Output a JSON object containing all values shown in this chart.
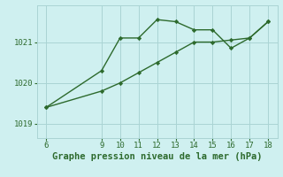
{
  "line1_x": [
    6,
    9,
    10,
    11,
    12,
    13,
    14,
    15,
    16,
    17,
    18
  ],
  "line1_y": [
    1019.4,
    1020.3,
    1021.1,
    1021.1,
    1021.55,
    1021.5,
    1021.3,
    1021.3,
    1020.85,
    1021.1,
    1021.5
  ],
  "line2_x": [
    6,
    9,
    10,
    11,
    12,
    13,
    14,
    15,
    16,
    17,
    18
  ],
  "line2_y": [
    1019.4,
    1019.8,
    1020.0,
    1020.25,
    1020.5,
    1020.75,
    1021.0,
    1021.0,
    1021.05,
    1021.1,
    1021.5
  ],
  "line_color": "#2d6a2d",
  "marker": "D",
  "markersize": 2.2,
  "linewidth": 1.0,
  "xlabel": "Graphe pression niveau de la mer (hPa)",
  "xlabel_color": "#2d6a2d",
  "xticks": [
    6,
    9,
    10,
    11,
    12,
    13,
    14,
    15,
    16,
    17,
    18
  ],
  "yticks": [
    1019,
    1020,
    1021
  ],
  "ylim": [
    1018.65,
    1021.9
  ],
  "xlim": [
    5.5,
    18.5
  ],
  "bg_color": "#cff0f0",
  "grid_color": "#aad4d4",
  "tick_color": "#2d6a2d",
  "tick_fontsize": 6.5,
  "xlabel_fontsize": 7.5
}
